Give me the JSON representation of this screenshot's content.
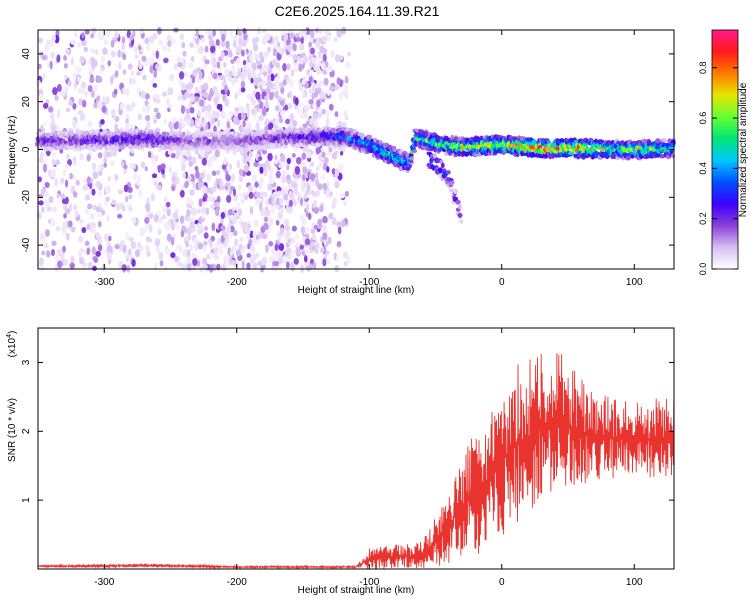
{
  "title": "C2E6.2025.164.11.39.R21",
  "chart_data": [
    {
      "type": "heatmap",
      "xlabel": "Height of straight line (km)",
      "ylabel": "Frequency (Hz)",
      "xlim": [
        -350,
        130
      ],
      "ylim": [
        -50,
        50
      ],
      "xticks": [
        -300,
        -200,
        -100,
        0,
        100
      ],
      "yticks": [
        -40,
        -20,
        0,
        20,
        40
      ],
      "colorbar": {
        "label": "Normalized spectral amplitude",
        "range": [
          0,
          0.95
        ],
        "ticks": [
          "0.0",
          "0.2",
          "0.4",
          "0.6",
          "0.8"
        ],
        "colors": [
          "#ffffff",
          "#d6bff2",
          "#8a3fd6",
          "#3a00ff",
          "#0050ff",
          "#00c8ff",
          "#00e676",
          "#66ff33",
          "#e6e600",
          "#ff7a00",
          "#ff1a1a",
          "#ff1a8c"
        ]
      },
      "band": [
        {
          "x": -350,
          "f": 3.5,
          "peak": 0.22
        },
        {
          "x": -300,
          "f": 4.0,
          "peak": 0.24
        },
        {
          "x": -265,
          "f": 4.5,
          "peak": 0.3
        },
        {
          "x": -240,
          "f": 3.5,
          "peak": 0.18
        },
        {
          "x": -200,
          "f": 3.5,
          "peak": 0.18
        },
        {
          "x": -160,
          "f": 5.0,
          "peak": 0.22
        },
        {
          "x": -120,
          "f": 5.5,
          "peak": 0.35
        },
        {
          "x": -100,
          "f": 2.0,
          "peak": 0.45
        },
        {
          "x": -85,
          "f": -2.0,
          "peak": 0.55
        },
        {
          "x": -70,
          "f": -6.0,
          "peak": 0.5
        },
        {
          "x": -65,
          "f": 5.0,
          "peak": 0.55
        },
        {
          "x": -45,
          "f": 2.0,
          "peak": 0.6
        },
        {
          "x": -30,
          "f": 1.0,
          "peak": 0.7
        },
        {
          "x": 0,
          "f": 2.0,
          "peak": 0.75
        },
        {
          "x": 30,
          "f": 0.5,
          "peak": 0.85
        },
        {
          "x": 60,
          "f": 0.5,
          "peak": 0.85
        },
        {
          "x": 90,
          "f": 0.0,
          "peak": 0.6
        },
        {
          "x": 110,
          "f": 0.0,
          "peak": 0.7
        },
        {
          "x": 130,
          "f": 0.5,
          "peak": 0.5
        }
      ],
      "branch": [
        {
          "x": -55,
          "f": -4.0,
          "peak": 0.5
        },
        {
          "x": -45,
          "f": -8.0,
          "peak": 0.4
        },
        {
          "x": -38,
          "f": -14.0,
          "peak": 0.25
        },
        {
          "x": -32,
          "f": -26.0,
          "peak": 0.2
        },
        {
          "x": -30,
          "f": -30.0,
          "peak": 0.15
        }
      ]
    },
    {
      "type": "line",
      "xlabel": "Height of straight line (km)",
      "ylabel": "SNR (10 * v/v)",
      "yscale_label": "(x10",
      "yscale_exp": "4",
      "xlim": [
        -350,
        130
      ],
      "ylim": [
        0,
        3.5
      ],
      "xticks": [
        -300,
        -200,
        -100,
        0,
        100
      ],
      "yticks": [
        1,
        2,
        3
      ],
      "color": "#e8332f",
      "envelope": [
        {
          "x": -350,
          "mean": 0.04,
          "spread": 0.01
        },
        {
          "x": -260,
          "mean": 0.05,
          "spread": 0.02
        },
        {
          "x": -200,
          "mean": 0.03,
          "spread": 0.01
        },
        {
          "x": -110,
          "mean": 0.03,
          "spread": 0.01
        },
        {
          "x": -100,
          "mean": 0.15,
          "spread": 0.12
        },
        {
          "x": -60,
          "mean": 0.2,
          "spread": 0.15
        },
        {
          "x": -45,
          "mean": 0.5,
          "spread": 0.35
        },
        {
          "x": -30,
          "mean": 0.9,
          "spread": 0.6
        },
        {
          "x": -10,
          "mean": 1.3,
          "spread": 0.8
        },
        {
          "x": 10,
          "mean": 1.8,
          "spread": 0.9
        },
        {
          "x": 40,
          "mean": 2.2,
          "spread": 0.8
        },
        {
          "x": 70,
          "mean": 1.9,
          "spread": 0.5
        },
        {
          "x": 100,
          "mean": 1.9,
          "spread": 0.4
        },
        {
          "x": 130,
          "mean": 1.9,
          "spread": 0.5
        }
      ]
    }
  ]
}
